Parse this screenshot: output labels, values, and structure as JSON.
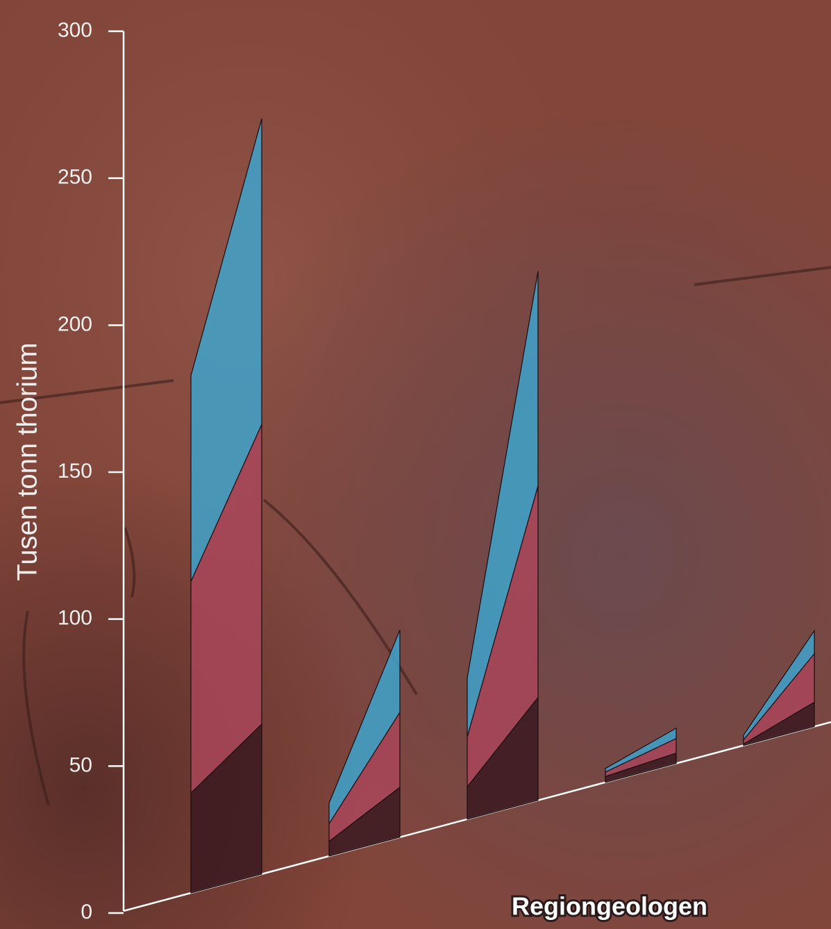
{
  "chart_data": {
    "type": "slanted-stacked-bar",
    "y_label": "Tusen tonn thorium",
    "credit": "Regiongeologen",
    "categories": [
      null,
      null,
      null,
      null,
      null
    ],
    "ylim": [
      0,
      300
    ],
    "yticks": [
      0,
      50,
      100,
      150,
      200,
      250,
      300
    ],
    "series": [
      {
        "color": "#3b1a21",
        "start_values": [
          34,
          5,
          11,
          2,
          0.5
        ],
        "values": [
          51,
          17,
          35,
          3.5,
          8.3
        ]
      },
      {
        "color": "#a9465b",
        "start_values": [
          72,
          6,
          17,
          1.5,
          1.4
        ],
        "values": [
          102,
          25.5,
          72,
          5,
          16.5
        ]
      },
      {
        "color": "#3ea3cc",
        "start_values": [
          70,
          7,
          20,
          1.2,
          1.6
        ],
        "values": [
          104,
          28,
          73,
          3.5,
          7.8
        ]
      }
    ]
  }
}
